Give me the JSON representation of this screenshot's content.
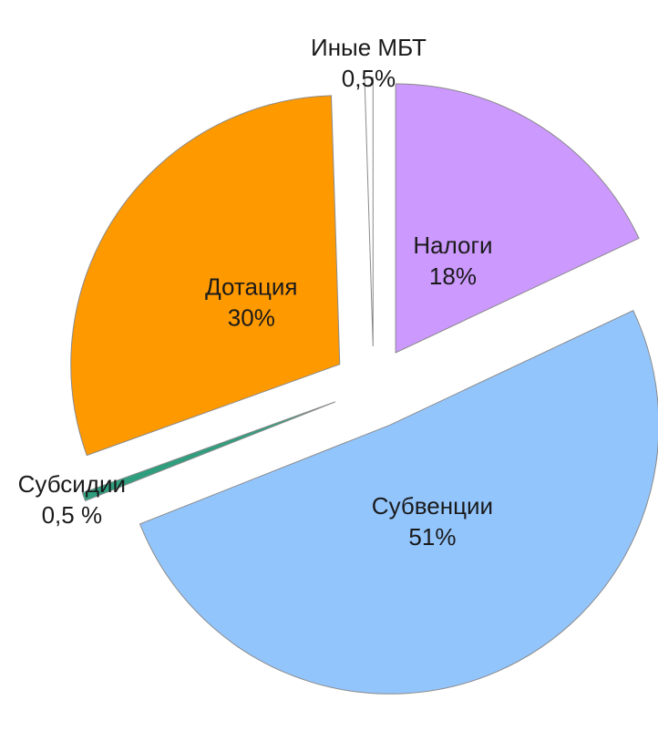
{
  "chart_data": {
    "type": "pie",
    "categories": [
      "Налоги",
      "Субвенции",
      "Субсидии",
      "Дотация",
      "Иные МБТ"
    ],
    "values": [
      18,
      51,
      0.5,
      30,
      0.5
    ],
    "value_labels": [
      "18%",
      "51%",
      "0,5 %",
      "30%",
      "0,5%"
    ],
    "colors": [
      "#cc99ff",
      "#93c5fd",
      "#2f9e7e",
      "#ff9900",
      "#ffffff"
    ],
    "start_angle": 0,
    "exploded": true
  }
}
